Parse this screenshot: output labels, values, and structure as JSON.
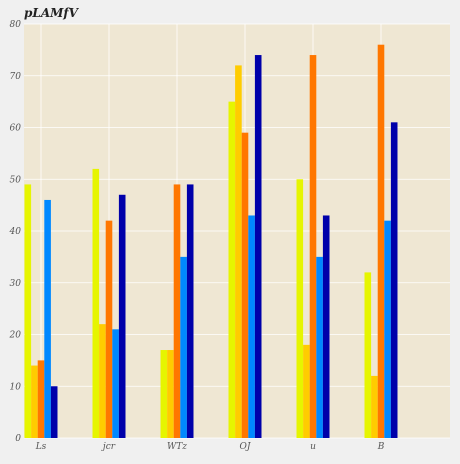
{
  "chart_data": {
    "type": "bar",
    "title": "pLAMfV",
    "xlabel": "",
    "ylabel": "",
    "categories": [
      "Ls",
      "jcr",
      "WTz",
      "OJ",
      "u",
      "B"
    ],
    "ylim": [
      0,
      80
    ],
    "yticks": [
      0,
      10,
      20,
      30,
      40,
      50,
      60,
      70,
      80
    ],
    "grid": true,
    "legend": "none",
    "series": [
      {
        "color": "#e6f500",
        "values": [
          49,
          52,
          17,
          65,
          50,
          32
        ]
      },
      {
        "color": "#ffcc00",
        "values": [
          14,
          22,
          17,
          72,
          18,
          12
        ]
      },
      {
        "color": "#ff7700",
        "values": [
          15,
          42,
          49,
          59,
          74,
          76
        ]
      },
      {
        "color": "#0088ff",
        "values": [
          46,
          21,
          35,
          43,
          35,
          42
        ]
      },
      {
        "color": "#0000aa",
        "values": [
          10,
          47,
          49,
          74,
          43,
          61
        ]
      }
    ],
    "colors": {
      "plot_background": "#efe7d3",
      "page_background": "#f0f0f0",
      "grid": "#ffffff",
      "tick_text": "#555555"
    }
  }
}
